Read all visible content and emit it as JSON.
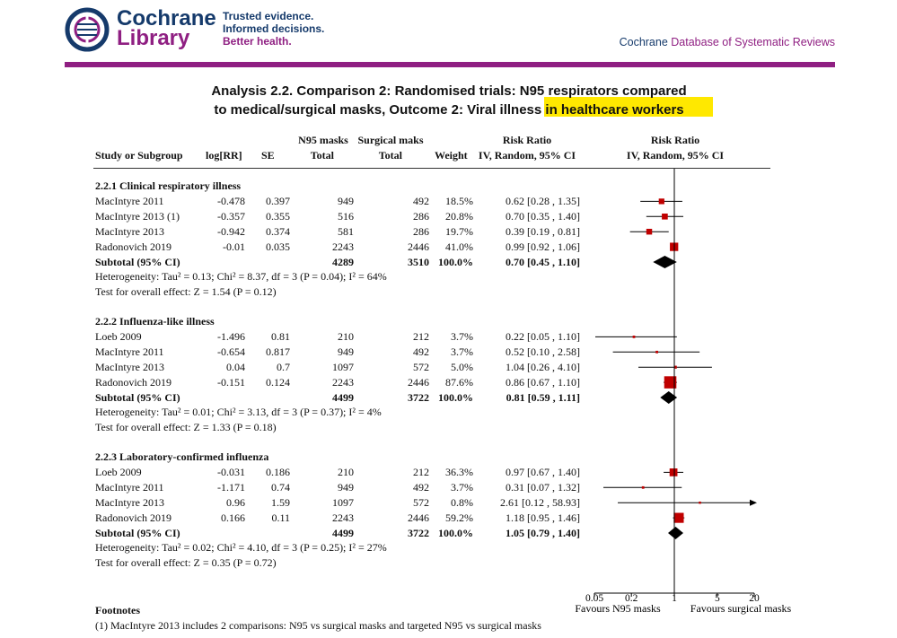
{
  "header": {
    "logo_line1": "Cochrane",
    "logo_line2": "Library",
    "tagline": [
      "Trusted evidence.",
      "Informed decisions.",
      "Better health."
    ],
    "db_title_part1": "Cochrane",
    "db_title_part2": "Database of Systematic Reviews"
  },
  "analysis": {
    "title_line1": "Analysis 2.2.   Comparison 2: Randomised trials: N95 respirators compared",
    "title_line2_a": "to medical/surgical masks, Outcome 2: Viral illness",
    "title_line2_b": " in healthcare workers"
  },
  "columns": {
    "study": "Study or Subgroup",
    "logrr": "log[RR]",
    "se": "SE",
    "n95_top": "N95 masks",
    "n95_bottom": "Total",
    "surg_top": "Surgical maks",
    "surg_bottom": "Total",
    "weight": "Weight",
    "rr_top": "Risk Ratio",
    "rr_bottom": "IV, Random, 95% CI",
    "plot_top": "Risk Ratio",
    "plot_bottom": "IV, Random, 95% CI"
  },
  "subgroups": [
    {
      "title": "2.2.1 Clinical respiratory illness",
      "studies": [
        {
          "name": "MacIntyre 2011",
          "logrr": "-0.478",
          "se": "0.397",
          "n95": "949",
          "surg": "492",
          "weight": "18.5%",
          "rr_text": "0.62 [0.28 , 1.35]",
          "rr": 0.62,
          "lo": 0.28,
          "hi": 1.35,
          "w": 18.5
        },
        {
          "name": "MacIntyre 2013 (1)",
          "logrr": "-0.357",
          "se": "0.355",
          "n95": "516",
          "surg": "286",
          "weight": "20.8%",
          "rr_text": "0.70 [0.35 , 1.40]",
          "rr": 0.7,
          "lo": 0.35,
          "hi": 1.4,
          "w": 20.8
        },
        {
          "name": "MacIntyre 2013",
          "logrr": "-0.942",
          "se": "0.374",
          "n95": "581",
          "surg": "286",
          "weight": "19.7%",
          "rr_text": "0.39 [0.19 , 0.81]",
          "rr": 0.39,
          "lo": 0.19,
          "hi": 0.81,
          "w": 19.7
        },
        {
          "name": "Radonovich 2019",
          "logrr": "-0.01",
          "se": "0.035",
          "n95": "2243",
          "surg": "2446",
          "weight": "41.0%",
          "rr_text": "0.99 [0.92 , 1.06]",
          "rr": 0.99,
          "lo": 0.92,
          "hi": 1.06,
          "w": 41.0
        }
      ],
      "subtotal": {
        "label": "Subtotal (95% CI)",
        "n95": "4289",
        "surg": "3510",
        "weight": "100.0%",
        "rr_text": "0.70 [0.45 , 1.10]",
        "rr": 0.7,
        "lo": 0.45,
        "hi": 1.1
      },
      "heterogeneity": "Heterogeneity: Tau² = 0.13; Chi² = 8.37, df = 3 (P = 0.04); I² = 64%",
      "overall": "Test for overall effect: Z = 1.54 (P = 0.12)"
    },
    {
      "title": "2.2.2 Influenza-like illness",
      "studies": [
        {
          "name": "Loeb 2009",
          "logrr": "-1.496",
          "se": "0.81",
          "n95": "210",
          "surg": "212",
          "weight": "3.7%",
          "rr_text": "0.22 [0.05 , 1.10]",
          "rr": 0.22,
          "lo": 0.05,
          "hi": 1.1,
          "w": 3.7
        },
        {
          "name": "MacIntyre 2011",
          "logrr": "-0.654",
          "se": "0.817",
          "n95": "949",
          "surg": "492",
          "weight": "3.7%",
          "rr_text": "0.52 [0.10 , 2.58]",
          "rr": 0.52,
          "lo": 0.1,
          "hi": 2.58,
          "w": 3.7
        },
        {
          "name": "MacIntyre 2013",
          "logrr": "0.04",
          "se": "0.7",
          "n95": "1097",
          "surg": "572",
          "weight": "5.0%",
          "rr_text": "1.04 [0.26 , 4.10]",
          "rr": 1.04,
          "lo": 0.26,
          "hi": 4.1,
          "w": 5.0
        },
        {
          "name": "Radonovich 2019",
          "logrr": "-0.151",
          "se": "0.124",
          "n95": "2243",
          "surg": "2446",
          "weight": "87.6%",
          "rr_text": "0.86 [0.67 , 1.10]",
          "rr": 0.86,
          "lo": 0.67,
          "hi": 1.1,
          "w": 87.6
        }
      ],
      "subtotal": {
        "label": "Subtotal (95% CI)",
        "n95": "4499",
        "surg": "3722",
        "weight": "100.0%",
        "rr_text": "0.81 [0.59 , 1.11]",
        "rr": 0.81,
        "lo": 0.59,
        "hi": 1.11
      },
      "heterogeneity": "Heterogeneity: Tau² = 0.01; Chi² = 3.13, df = 3 (P = 0.37); I² = 4%",
      "overall": "Test for overall effect: Z = 1.33 (P = 0.18)"
    },
    {
      "title": "2.2.3 Laboratory-confirmed influenza",
      "studies": [
        {
          "name": "Loeb 2009",
          "logrr": "-0.031",
          "se": "0.186",
          "n95": "210",
          "surg": "212",
          "weight": "36.3%",
          "rr_text": "0.97 [0.67 , 1.40]",
          "rr": 0.97,
          "lo": 0.67,
          "hi": 1.4,
          "w": 36.3
        },
        {
          "name": "MacIntyre 2011",
          "logrr": "-1.171",
          "se": "0.74",
          "n95": "949",
          "surg": "492",
          "weight": "3.7%",
          "rr_text": "0.31 [0.07 , 1.32]",
          "rr": 0.31,
          "lo": 0.07,
          "hi": 1.32,
          "w": 3.7
        },
        {
          "name": "MacIntyre 2013",
          "logrr": "0.96",
          "se": "1.59",
          "n95": "1097",
          "surg": "572",
          "weight": "0.8%",
          "rr_text": "2.61 [0.12 , 58.93]",
          "rr": 2.61,
          "lo": 0.12,
          "hi": 58.93,
          "w": 0.8
        },
        {
          "name": "Radonovich 2019",
          "logrr": "0.166",
          "se": "0.11",
          "n95": "2243",
          "surg": "2446",
          "weight": "59.2%",
          "rr_text": "1.18 [0.95 , 1.46]",
          "rr": 1.18,
          "lo": 0.95,
          "hi": 1.46,
          "w": 59.2
        }
      ],
      "subtotal": {
        "label": "Subtotal (95% CI)",
        "n95": "4499",
        "surg": "3722",
        "weight": "100.0%",
        "rr_text": "1.05 [0.79 , 1.40]",
        "rr": 1.05,
        "lo": 0.79,
        "hi": 1.4
      },
      "heterogeneity": "Heterogeneity: Tau² = 0.02; Chi² = 4.10, df = 3 (P = 0.25); I² = 27%",
      "overall": "Test for overall effect: Z = 0.35 (P = 0.72)"
    }
  ],
  "axis": {
    "ticks": [
      {
        "value": 0.05,
        "label": "0.05"
      },
      {
        "value": 0.2,
        "label": "0.2"
      },
      {
        "value": 1,
        "label": "1"
      },
      {
        "value": 5,
        "label": "5"
      },
      {
        "value": 20,
        "label": "20"
      }
    ],
    "range": [
      0.05,
      20
    ],
    "scale": "log",
    "favours_left": "Favours N95 masks",
    "favours_right": "Favours surgical masks"
  },
  "footnotes": {
    "heading": "Footnotes",
    "items": [
      "(1) MacIntyre 2013 includes 2 comparisons: N95 vs surgical masks and targeted N95 vs surgical masks"
    ]
  },
  "colors": {
    "brand_blue": "#153a6b",
    "brand_purple": "#8f1f82",
    "highlight": "#ffe800",
    "study_marker": "#c00000",
    "diamond": "#000000"
  }
}
